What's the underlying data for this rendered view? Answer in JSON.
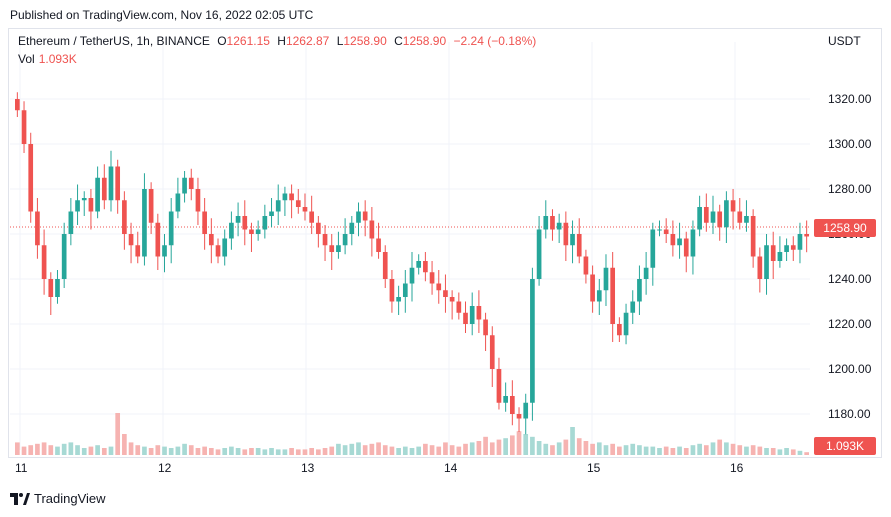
{
  "header": {
    "published": "Published on TradingView.com, Nov 16, 2022 02:05 UTC"
  },
  "legend": {
    "symbol": "Ethereum / TetherUS, 1h, BINANCE",
    "o_label": "O",
    "o_value": "1261.15",
    "h_label": "H",
    "h_value": "1262.87",
    "l_label": "L",
    "l_value": "1258.90",
    "c_label": "C",
    "c_value": "1258.90",
    "change": "−2.24 (−0.18%)",
    "vol_label": "Vol",
    "vol_value": "1.093K"
  },
  "currency": "USDT",
  "last_price_tag": "1258.90",
  "last_volume_tag": "1.093K",
  "brand": "TradingView",
  "colors": {
    "up": "#26a69a",
    "down": "#ef5350",
    "up_vol": "#a7d9d4",
    "down_vol": "#f6b3b1",
    "grid": "#f0f3fa"
  },
  "chart_data": {
    "type": "candlestick",
    "y_ticks": [
      "1320.00",
      "1300.00",
      "1280.00",
      "1260.00",
      "1240.00",
      "1220.00",
      "1200.00",
      "1180.00"
    ],
    "ylim": [
      1164,
      1332
    ],
    "x_ticks": [
      "11",
      "12",
      "13",
      "14",
      "15",
      "16"
    ],
    "last_price": 1258.9,
    "close": [
      1315,
      1300,
      1270,
      1255,
      1240,
      1232,
      1240,
      1260,
      1270,
      1275,
      1276,
      1270,
      1285,
      1275,
      1290,
      1275,
      1260,
      1255,
      1250,
      1280,
      1265,
      1250,
      1255,
      1270,
      1278,
      1285,
      1280,
      1270,
      1260,
      1255,
      1250,
      1258,
      1265,
      1268,
      1262,
      1260,
      1262,
      1268,
      1270,
      1275,
      1278,
      1275,
      1272,
      1270,
      1265,
      1260,
      1255,
      1252,
      1255,
      1260,
      1265,
      1270,
      1266,
      1258,
      1252,
      1240,
      1230,
      1232,
      1238,
      1245,
      1248,
      1243,
      1238,
      1235,
      1232,
      1230,
      1225,
      1220,
      1228,
      1222,
      1215,
      1200,
      1185,
      1188,
      1180,
      1178,
      1185,
      1240,
      1262,
      1268,
      1262,
      1265,
      1255,
      1260,
      1250,
      1242,
      1230,
      1235,
      1245,
      1220,
      1215,
      1225,
      1230,
      1240,
      1245,
      1262,
      1262,
      1260,
      1255,
      1258,
      1250,
      1262,
      1272,
      1265,
      1270,
      1263,
      1275,
      1270,
      1265,
      1268,
      1250,
      1240,
      1255,
      1248,
      1252,
      1255,
      1253,
      1260,
      1258.9
    ],
    "volume_scale": [
      0.9,
      0.6,
      0.7,
      0.8,
      0.9,
      0.7,
      0.6,
      0.8,
      0.9,
      0.7,
      0.5,
      0.6,
      0.7,
      0.5,
      0.6,
      3.0,
      1.5,
      0.9,
      0.7,
      0.6,
      0.5,
      0.7,
      0.6,
      0.5,
      0.6,
      0.8,
      0.7,
      0.5,
      0.6,
      0.5,
      0.4,
      0.5,
      0.6,
      0.5,
      0.4,
      0.5,
      0.5,
      0.4,
      0.5,
      0.4,
      0.4,
      0.5,
      0.4,
      0.4,
      0.5,
      0.4,
      0.5,
      0.6,
      0.8,
      0.7,
      0.8,
      0.9,
      0.7,
      0.8,
      0.9,
      0.7,
      0.6,
      0.5,
      0.6,
      0.5,
      0.6,
      0.8,
      0.7,
      0.6,
      0.9,
      0.7,
      0.6,
      0.8,
      0.9,
      1.0,
      1.3,
      0.9,
      1.1,
      1.2,
      1.4,
      1.7,
      1.5,
      1.3,
      1.0,
      0.8,
      0.7,
      0.9,
      1.1,
      2.0,
      1.2,
      1.0,
      0.8,
      0.9,
      0.7,
      0.8,
      0.6,
      0.7,
      0.8,
      0.7,
      0.6,
      0.6,
      0.5,
      0.6,
      0.5,
      0.6,
      0.5,
      0.7,
      0.8,
      0.7,
      0.9,
      1.1,
      0.9,
      0.8,
      0.7,
      0.6,
      0.7,
      0.6,
      0.5,
      0.5,
      0.4,
      0.5,
      0.4,
      0.3,
      0.2
    ]
  }
}
